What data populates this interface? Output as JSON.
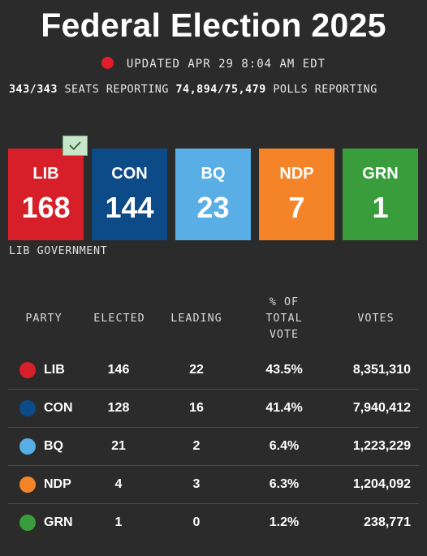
{
  "header": {
    "title": "Federal Election 2025",
    "updated": "UPDATED APR 29 8:04 AM EDT",
    "seats_reporting_value": "343/343",
    "seats_reporting_label": "SEATS REPORTING",
    "polls_reporting_value": "74,894/75,479",
    "polls_reporting_label": "POLLS REPORTING",
    "live_color": "#e21c2a"
  },
  "seat_cards": [
    {
      "party": "LIB",
      "seats": "168",
      "color": "#d71f29",
      "winner": true
    },
    {
      "party": "CON",
      "seats": "144",
      "color": "#0c4a88",
      "winner": false
    },
    {
      "party": "BQ",
      "seats": "23",
      "color": "#59aee6",
      "winner": false
    },
    {
      "party": "NDP",
      "seats": "7",
      "color": "#f58428",
      "winner": false
    },
    {
      "party": "GRN",
      "seats": "1",
      "color": "#3a9d3c",
      "winner": false
    }
  ],
  "winner_icon": "check-icon",
  "government_label": "LIB GOVERNMENT",
  "table": {
    "headers": {
      "party": "PARTY",
      "elected": "ELECTED",
      "leading": "LEADING",
      "vote_share_line1": "% OF",
      "vote_share_line2": "TOTAL",
      "vote_share_line3": "VOTE",
      "votes": "VOTES"
    },
    "rows": [
      {
        "party": "LIB",
        "elected": "146",
        "leading": "22",
        "vote_share": "43.5%",
        "votes": "8,351,310",
        "color": "#d71f29"
      },
      {
        "party": "CON",
        "elected": "128",
        "leading": "16",
        "vote_share": "41.4%",
        "votes": "7,940,412",
        "color": "#0c4a88"
      },
      {
        "party": "BQ",
        "elected": "21",
        "leading": "2",
        "vote_share": "6.4%",
        "votes": "1,223,229",
        "color": "#59aee6"
      },
      {
        "party": "NDP",
        "elected": "4",
        "leading": "3",
        "vote_share": "6.3%",
        "votes": "1,204,092",
        "color": "#f58428"
      },
      {
        "party": "GRN",
        "elected": "1",
        "leading": "0",
        "vote_share": "1.2%",
        "votes": "238,771",
        "color": "#3a9d3c"
      }
    ]
  }
}
